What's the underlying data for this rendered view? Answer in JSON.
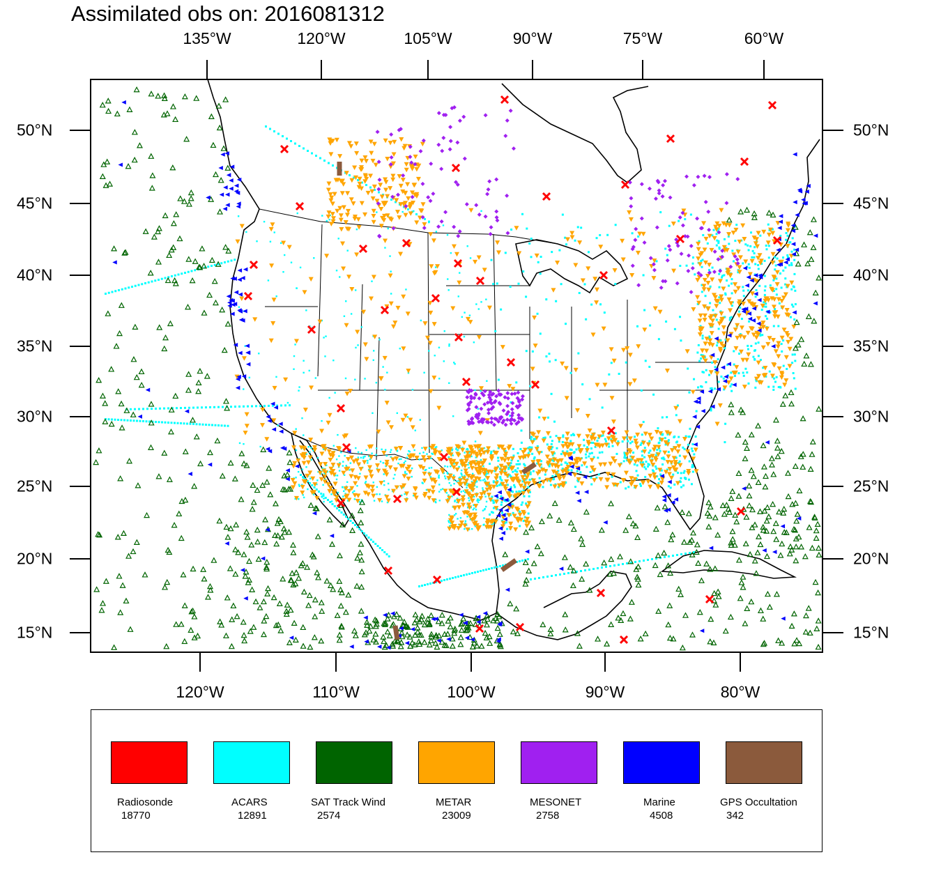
{
  "title": "Assimilated obs on: 2016081312",
  "axes": {
    "top_lon_labels": [
      "135°W",
      "120°W",
      "105°W",
      "90°W",
      "75°W",
      "60°W"
    ],
    "bottom_lon_labels": [
      "120°W",
      "110°W",
      "100°W",
      "90°W",
      "80°W"
    ],
    "lat_labels": [
      "50°N",
      "45°N",
      "40°N",
      "35°N",
      "30°N",
      "25°N",
      "20°N",
      "15°N"
    ]
  },
  "map": {
    "region": "Continental United States, Mexico, Gulf of Mexico, Caribbean",
    "lon_range": [
      -128,
      -74
    ],
    "lat_range": [
      14,
      53.5
    ]
  },
  "legend": {
    "items": [
      {
        "name": "Radiosonde",
        "count": "18770",
        "color": "#ff0000",
        "marker": "x"
      },
      {
        "name": "ACARS",
        "count": "12891",
        "color": "#00ffff",
        "marker": "square"
      },
      {
        "name": "SAT Track Wind",
        "count": "2574",
        "color": "#006400",
        "marker": "triangle-up"
      },
      {
        "name": "METAR",
        "count": "23009",
        "color": "#ffa500",
        "marker": "triangle-down"
      },
      {
        "name": "MESONET",
        "count": "2758",
        "color": "#a020f0",
        "marker": "diamond"
      },
      {
        "name": "Marine",
        "count": "4508",
        "color": "#0000ff",
        "marker": "triangle-left"
      },
      {
        "name": "GPS Occultation",
        "count": "342",
        "color": "#8b5a3c",
        "marker": "segment"
      }
    ]
  }
}
